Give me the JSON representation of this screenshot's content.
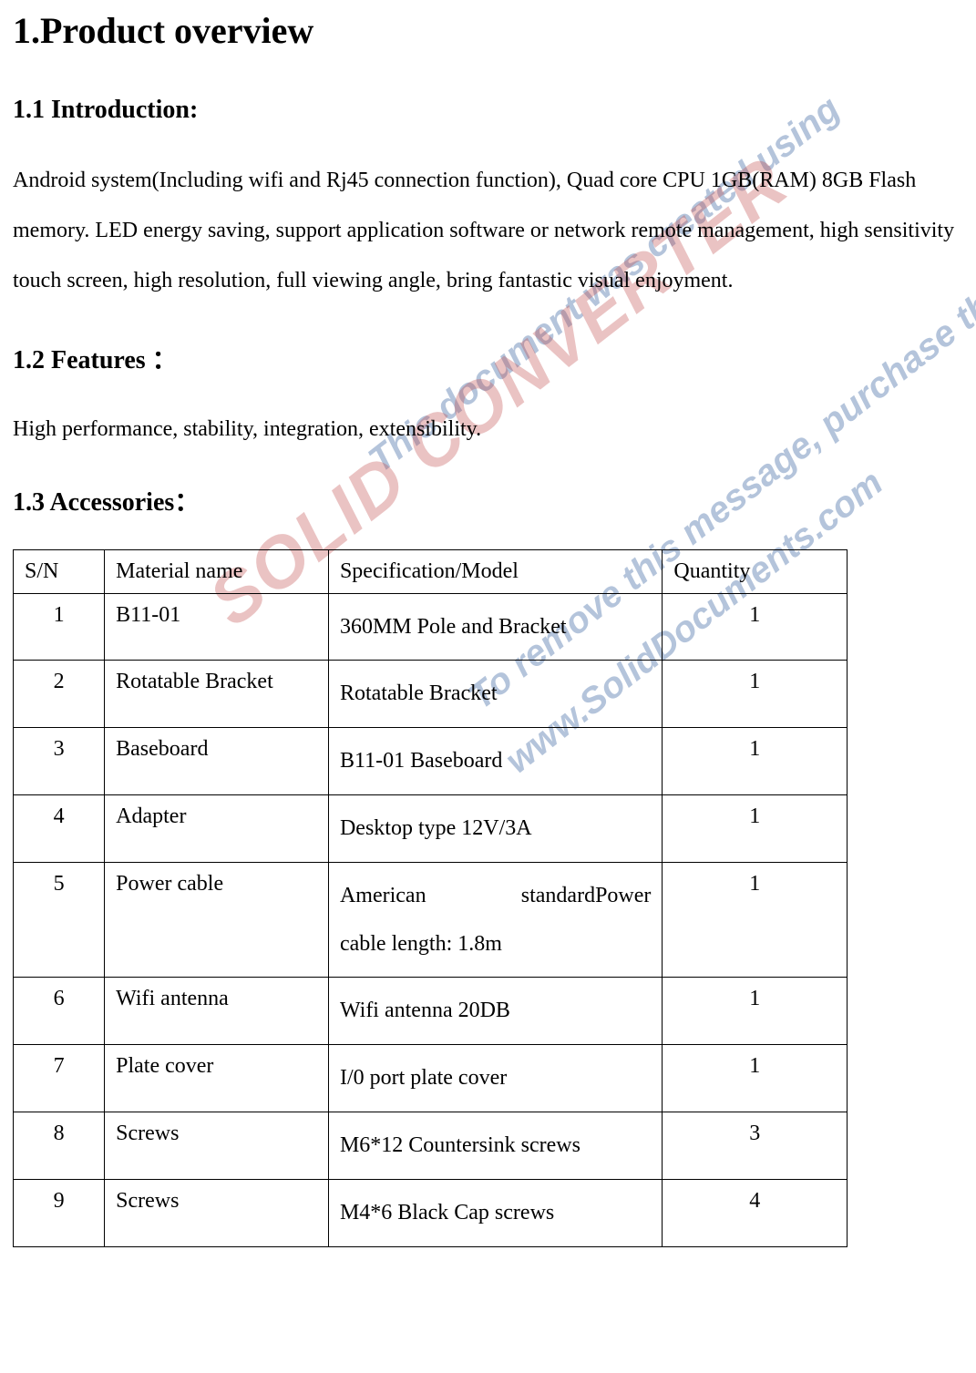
{
  "heading_main": "1.Product overview",
  "section_intro": {
    "title": "1.1 Introduction:",
    "body": "Android system(Including wifi and Rj45 connection function), Quad core CPU 1GB(RAM) 8GB Flash memory.    LED energy saving, support application software or network remote management,    high sensitivity touch screen, high resolution, full viewing angle, bring fantastic visual enjoyment."
  },
  "section_features": {
    "title": "1.2 Features ：",
    "body": "High performance, stability, integration, extensibility."
  },
  "section_accessories": {
    "title": "1.3 Accessories：",
    "columns": {
      "sn": "S/N",
      "name": "Material name",
      "spec": "Specification/Model",
      "qty": "Quantity"
    },
    "rows": [
      {
        "sn": "1",
        "name": "B11-01",
        "spec": "360MM Pole and Bracket",
        "qty": "1"
      },
      {
        "sn": "2",
        "name": "Rotatable Bracket",
        "spec": "Rotatable Bracket",
        "qty": "1"
      },
      {
        "sn": "3",
        "name": "Baseboard",
        "spec": "B11-01 Baseboard",
        "qty": "1"
      },
      {
        "sn": "4",
        "name": "Adapter",
        "spec": "Desktop type 12V/3A",
        "qty": "1"
      },
      {
        "sn": "5",
        "name": "Power cable",
        "spec_line1": "American",
        "spec_line1b": "standardPower",
        "spec_line2": "cable length: 1.8m",
        "qty": "1"
      },
      {
        "sn": "6",
        "name": "Wifi antenna",
        "spec": "Wifi antenna 20DB",
        "qty": "1"
      },
      {
        "sn": "7",
        "name": "Plate cover",
        "spec": "I/0 port plate cover",
        "qty": "1"
      },
      {
        "sn": "8",
        "name": "Screws",
        "spec": "M6*12 Countersink screws",
        "qty": "3"
      },
      {
        "sn": "9",
        "name": "Screws",
        "spec": "M4*6 Black Cap screws",
        "qty": "4"
      }
    ]
  },
  "watermark": {
    "line1": "This document was created using",
    "line2": "SOLID CONVERTER",
    "line3": "To remove this message, purchase the product at",
    "line4": "www.SolidDocuments.com"
  }
}
